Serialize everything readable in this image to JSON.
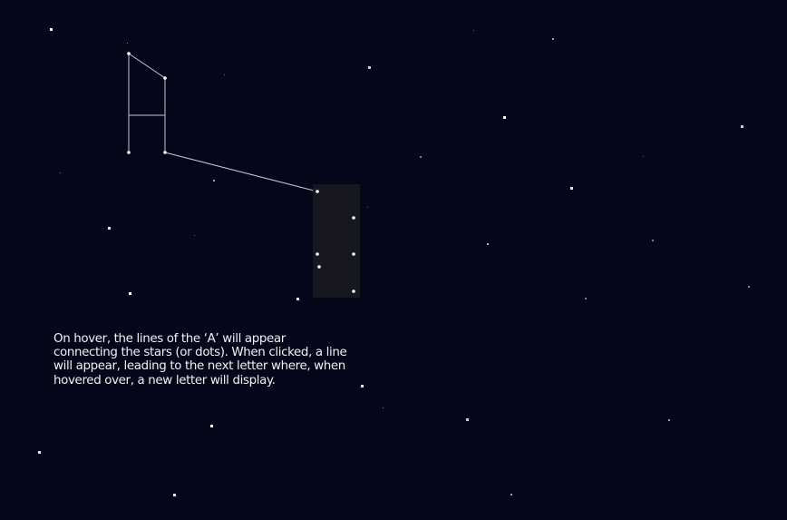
{
  "caption": "On hover, the lines of the ‘A’ will appear connecting the stars (or dots). When clicked, a line will appear, leading to the next letter where, when hovered over, a new letter will display.",
  "colors": {
    "background": "#05061a",
    "line": "#c8c8d0",
    "star": "#ffffff",
    "hover_zone": "#17171f",
    "text": "#f2f2f2"
  }
}
